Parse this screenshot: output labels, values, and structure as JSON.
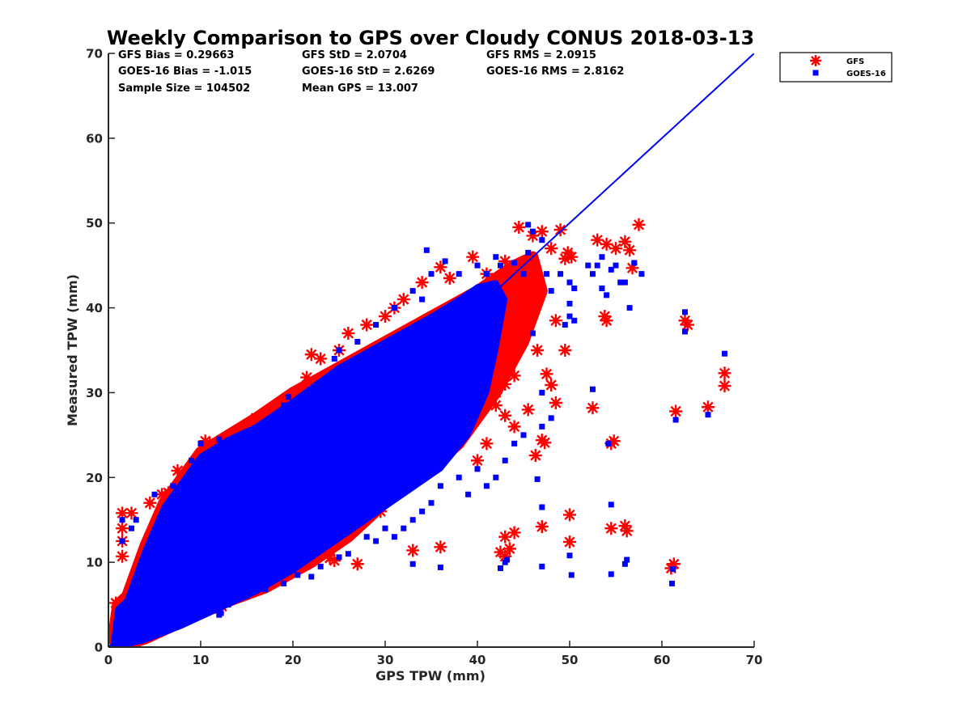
{
  "chart_data": {
    "type": "scatter",
    "title": "Weekly Comparison to GPS over Cloudy CONUS 2018-03-13",
    "xlabel": "GPS TPW (mm)",
    "ylabel": "Measured TPW (mm)",
    "xlim": [
      0,
      70
    ],
    "ylim": [
      0,
      70
    ],
    "xticks": [
      0,
      10,
      20,
      30,
      40,
      50,
      60,
      70
    ],
    "yticks": [
      0,
      10,
      20,
      30,
      40,
      50,
      60,
      70
    ],
    "grid": false,
    "legend_position": "outside top-right",
    "stats": [
      [
        "GFS Bias = 0.29663",
        "GFS StD = 2.0704",
        "GFS RMS = 2.0915"
      ],
      [
        "GOES-16 Bias = -1.015",
        "GOES-16 StD = 2.6269",
        "GOES-16 RMS = 2.8162"
      ],
      [
        "Sample Size = 104502",
        "Mean GPS = 13.007",
        ""
      ]
    ],
    "reference_line": {
      "x": [
        0,
        70
      ],
      "y": [
        0,
        70
      ],
      "color": "#0000ff"
    },
    "series": [
      {
        "name": "GFS",
        "marker": "asterisk",
        "color": "#ff0000",
        "bulk_polygon": [
          [
            0.5,
            1
          ],
          [
            1,
            5
          ],
          [
            2,
            6
          ],
          [
            4,
            12
          ],
          [
            6,
            17
          ],
          [
            8,
            20
          ],
          [
            10,
            23
          ],
          [
            13,
            25
          ],
          [
            16,
            27
          ],
          [
            20,
            30
          ],
          [
            25,
            33
          ],
          [
            30,
            36
          ],
          [
            35,
            39
          ],
          [
            40,
            42
          ],
          [
            44,
            45
          ],
          [
            46,
            46
          ],
          [
            47,
            42
          ],
          [
            45,
            36
          ],
          [
            42,
            30
          ],
          [
            38,
            24
          ],
          [
            34,
            20
          ],
          [
            30,
            17
          ],
          [
            26,
            13
          ],
          [
            22,
            10
          ],
          [
            17,
            7
          ],
          [
            12,
            5
          ],
          [
            8,
            3
          ],
          [
            4,
            1
          ],
          [
            1,
            0
          ]
        ],
        "points": [
          [
            1.5,
            15.8
          ],
          [
            2.5,
            15.8
          ],
          [
            1.5,
            14
          ],
          [
            1.5,
            10.7
          ],
          [
            1.5,
            12.5
          ],
          [
            0.8,
            5.2
          ],
          [
            1.2,
            4.8
          ],
          [
            4.5,
            17
          ],
          [
            5.8,
            18
          ],
          [
            6.5,
            18.2
          ],
          [
            7.5,
            20.8
          ],
          [
            8.5,
            19.5
          ],
          [
            9.8,
            21.5
          ],
          [
            10.5,
            24.3
          ],
          [
            11,
            24
          ],
          [
            12.5,
            20
          ],
          [
            13.5,
            24
          ],
          [
            15,
            25
          ],
          [
            16,
            27
          ],
          [
            18,
            28
          ],
          [
            19.5,
            29
          ],
          [
            20.5,
            30
          ],
          [
            21.5,
            31.8
          ],
          [
            22,
            34.5
          ],
          [
            23,
            34
          ],
          [
            25,
            35
          ],
          [
            26,
            37
          ],
          [
            28,
            38
          ],
          [
            30,
            39
          ],
          [
            31,
            40
          ],
          [
            32,
            41
          ],
          [
            34,
            43
          ],
          [
            36,
            44.8
          ],
          [
            37,
            43.5
          ],
          [
            39.5,
            46
          ],
          [
            41,
            44
          ],
          [
            43,
            45.5
          ],
          [
            44.5,
            49.5
          ],
          [
            46,
            48.5
          ],
          [
            47,
            49
          ],
          [
            48,
            47
          ],
          [
            49,
            49.2
          ],
          [
            49.5,
            45.8
          ],
          [
            49.8,
            46.5
          ],
          [
            50.2,
            46
          ],
          [
            49.5,
            35
          ],
          [
            46.5,
            35
          ],
          [
            43,
            31
          ],
          [
            44,
            32
          ],
          [
            41,
            37
          ],
          [
            42,
            30
          ],
          [
            40,
            28
          ],
          [
            39,
            27
          ],
          [
            38,
            25
          ],
          [
            37,
            24
          ],
          [
            36,
            23
          ],
          [
            35,
            22
          ],
          [
            34,
            21
          ],
          [
            33,
            20
          ],
          [
            32,
            19
          ],
          [
            31,
            18
          ],
          [
            29.5,
            16
          ],
          [
            28,
            15.8
          ],
          [
            27,
            15
          ],
          [
            40,
            22
          ],
          [
            41,
            24
          ],
          [
            42,
            28.5
          ],
          [
            43,
            27.3
          ],
          [
            44,
            26
          ],
          [
            45.5,
            28
          ],
          [
            47,
            24.4
          ],
          [
            47.3,
            24.1
          ],
          [
            46.3,
            22.6
          ],
          [
            48.5,
            28.8
          ],
          [
            47.5,
            32.2
          ],
          [
            48,
            30.9
          ],
          [
            48.5,
            38.5
          ],
          [
            52.5,
            28.2
          ],
          [
            53,
            48
          ],
          [
            54,
            47.5
          ],
          [
            55,
            47
          ],
          [
            56,
            47.8
          ],
          [
            56.5,
            46.8
          ],
          [
            57.5,
            49.8
          ],
          [
            56.8,
            44.7
          ],
          [
            53.8,
            39
          ],
          [
            54,
            38.5
          ],
          [
            54.5,
            24
          ],
          [
            54.8,
            24.3
          ],
          [
            54.5,
            14
          ],
          [
            56,
            14.3
          ],
          [
            56.2,
            13.7
          ],
          [
            50,
            15.6
          ],
          [
            50,
            12.4
          ],
          [
            47,
            14.2
          ],
          [
            44,
            13.5
          ],
          [
            43,
            13
          ],
          [
            42.5,
            11.2
          ],
          [
            43,
            10.7
          ],
          [
            43.5,
            11.6
          ],
          [
            36,
            11.8
          ],
          [
            33,
            11.4
          ],
          [
            24,
            10.5
          ],
          [
            24.5,
            10.2
          ],
          [
            27,
            9.8
          ],
          [
            20.3,
            9.2
          ],
          [
            12,
            4.5
          ],
          [
            12.3,
            4.8
          ],
          [
            61,
            9.3
          ],
          [
            61.3,
            9.8
          ],
          [
            61.5,
            27.8
          ],
          [
            62.5,
            38.5
          ],
          [
            62.8,
            38
          ],
          [
            65,
            28.3
          ],
          [
            66.8,
            32.3
          ],
          [
            66.8,
            30.8
          ]
        ]
      },
      {
        "name": "GOES-16",
        "marker": "square",
        "color": "#0000ff",
        "bulk_polygon": [
          [
            0.5,
            0.3
          ],
          [
            1,
            4.5
          ],
          [
            2,
            5.5
          ],
          [
            4,
            11.5
          ],
          [
            6,
            16.5
          ],
          [
            8,
            19.5
          ],
          [
            10,
            22.5
          ],
          [
            13,
            24.5
          ],
          [
            16,
            26
          ],
          [
            20,
            29
          ],
          [
            25,
            33
          ],
          [
            30,
            36
          ],
          [
            35,
            39
          ],
          [
            38,
            41
          ],
          [
            40,
            42.5
          ],
          [
            42,
            43
          ],
          [
            43,
            41
          ],
          [
            42,
            35
          ],
          [
            41,
            30
          ],
          [
            39,
            25
          ],
          [
            36,
            21
          ],
          [
            32,
            18
          ],
          [
            28,
            15
          ],
          [
            24,
            12
          ],
          [
            20,
            9
          ],
          [
            16,
            6.5
          ],
          [
            12,
            4.5
          ],
          [
            8,
            2.5
          ],
          [
            4,
            0.8
          ],
          [
            1,
            0
          ]
        ],
        "points": [
          [
            1.5,
            15
          ],
          [
            1.5,
            12.5
          ],
          [
            2.5,
            14
          ],
          [
            3,
            15
          ],
          [
            5,
            18
          ],
          [
            7,
            19
          ],
          [
            9,
            22
          ],
          [
            10,
            24
          ],
          [
            12,
            24.5
          ],
          [
            17,
            26
          ],
          [
            19,
            28.5
          ],
          [
            19.5,
            29.5
          ],
          [
            24,
            32
          ],
          [
            24.5,
            34
          ],
          [
            25,
            35
          ],
          [
            27,
            36
          ],
          [
            29,
            38
          ],
          [
            31,
            40
          ],
          [
            33,
            42
          ],
          [
            34,
            41
          ],
          [
            35,
            44
          ],
          [
            34.5,
            46.8
          ],
          [
            36.5,
            45.5
          ],
          [
            38,
            44
          ],
          [
            40,
            45
          ],
          [
            41,
            44
          ],
          [
            42,
            46
          ],
          [
            42.5,
            45
          ],
          [
            44,
            45.3
          ],
          [
            45,
            44
          ],
          [
            45.5,
            46.5
          ],
          [
            45.5,
            49.8
          ],
          [
            46,
            49
          ],
          [
            47,
            48
          ],
          [
            47.5,
            44
          ],
          [
            48,
            42
          ],
          [
            49,
            44
          ],
          [
            50,
            43
          ],
          [
            50.5,
            42.3
          ],
          [
            50,
            40.5
          ],
          [
            52,
            45
          ],
          [
            52.5,
            44
          ],
          [
            53,
            45
          ],
          [
            53.5,
            42.3
          ],
          [
            54,
            41.5
          ],
          [
            55,
            45
          ],
          [
            56,
            43
          ],
          [
            56.5,
            40
          ],
          [
            57,
            45.3
          ],
          [
            57.8,
            44
          ],
          [
            53.5,
            46
          ],
          [
            54.5,
            44.5
          ],
          [
            55.5,
            43
          ],
          [
            49.5,
            38
          ],
          [
            50,
            39
          ],
          [
            50.5,
            38.5
          ],
          [
            46,
            37
          ],
          [
            47,
            30
          ],
          [
            48,
            27
          ],
          [
            47,
            26
          ],
          [
            45,
            25
          ],
          [
            44,
            24
          ],
          [
            43,
            22
          ],
          [
            42,
            20
          ],
          [
            41,
            19
          ],
          [
            40,
            21
          ],
          [
            39,
            18
          ],
          [
            38,
            20
          ],
          [
            36,
            19
          ],
          [
            35,
            17
          ],
          [
            34,
            16
          ],
          [
            33,
            15
          ],
          [
            32,
            14
          ],
          [
            31,
            13
          ],
          [
            30,
            14
          ],
          [
            29,
            12.5
          ],
          [
            28,
            13
          ],
          [
            26,
            11
          ],
          [
            25,
            10.6
          ],
          [
            23,
            9.5
          ],
          [
            22,
            8.3
          ],
          [
            20.5,
            8.5
          ],
          [
            19,
            7.5
          ],
          [
            17,
            6.8
          ],
          [
            15,
            6
          ],
          [
            13,
            5
          ],
          [
            12,
            3.8
          ],
          [
            12.2,
            4
          ],
          [
            50.2,
            8.5
          ],
          [
            50,
            10.8
          ],
          [
            47,
            9.5
          ],
          [
            46.5,
            19.8
          ],
          [
            47,
            16.5
          ],
          [
            43,
            10
          ],
          [
            42.5,
            9.3
          ],
          [
            43.2,
            10.3
          ],
          [
            36,
            9.4
          ],
          [
            33,
            9.8
          ],
          [
            52.5,
            30.4
          ],
          [
            54.5,
            8.6
          ],
          [
            54.2,
            24
          ],
          [
            54.5,
            16.8
          ],
          [
            56,
            9.8
          ],
          [
            56.2,
            10.3
          ],
          [
            61.2,
            9.2
          ],
          [
            61.1,
            7.5
          ],
          [
            61.5,
            26.8
          ],
          [
            62.5,
            39.5
          ],
          [
            62.5,
            37.2
          ],
          [
            65,
            27.4
          ],
          [
            66.8,
            34.6
          ]
        ]
      }
    ]
  }
}
